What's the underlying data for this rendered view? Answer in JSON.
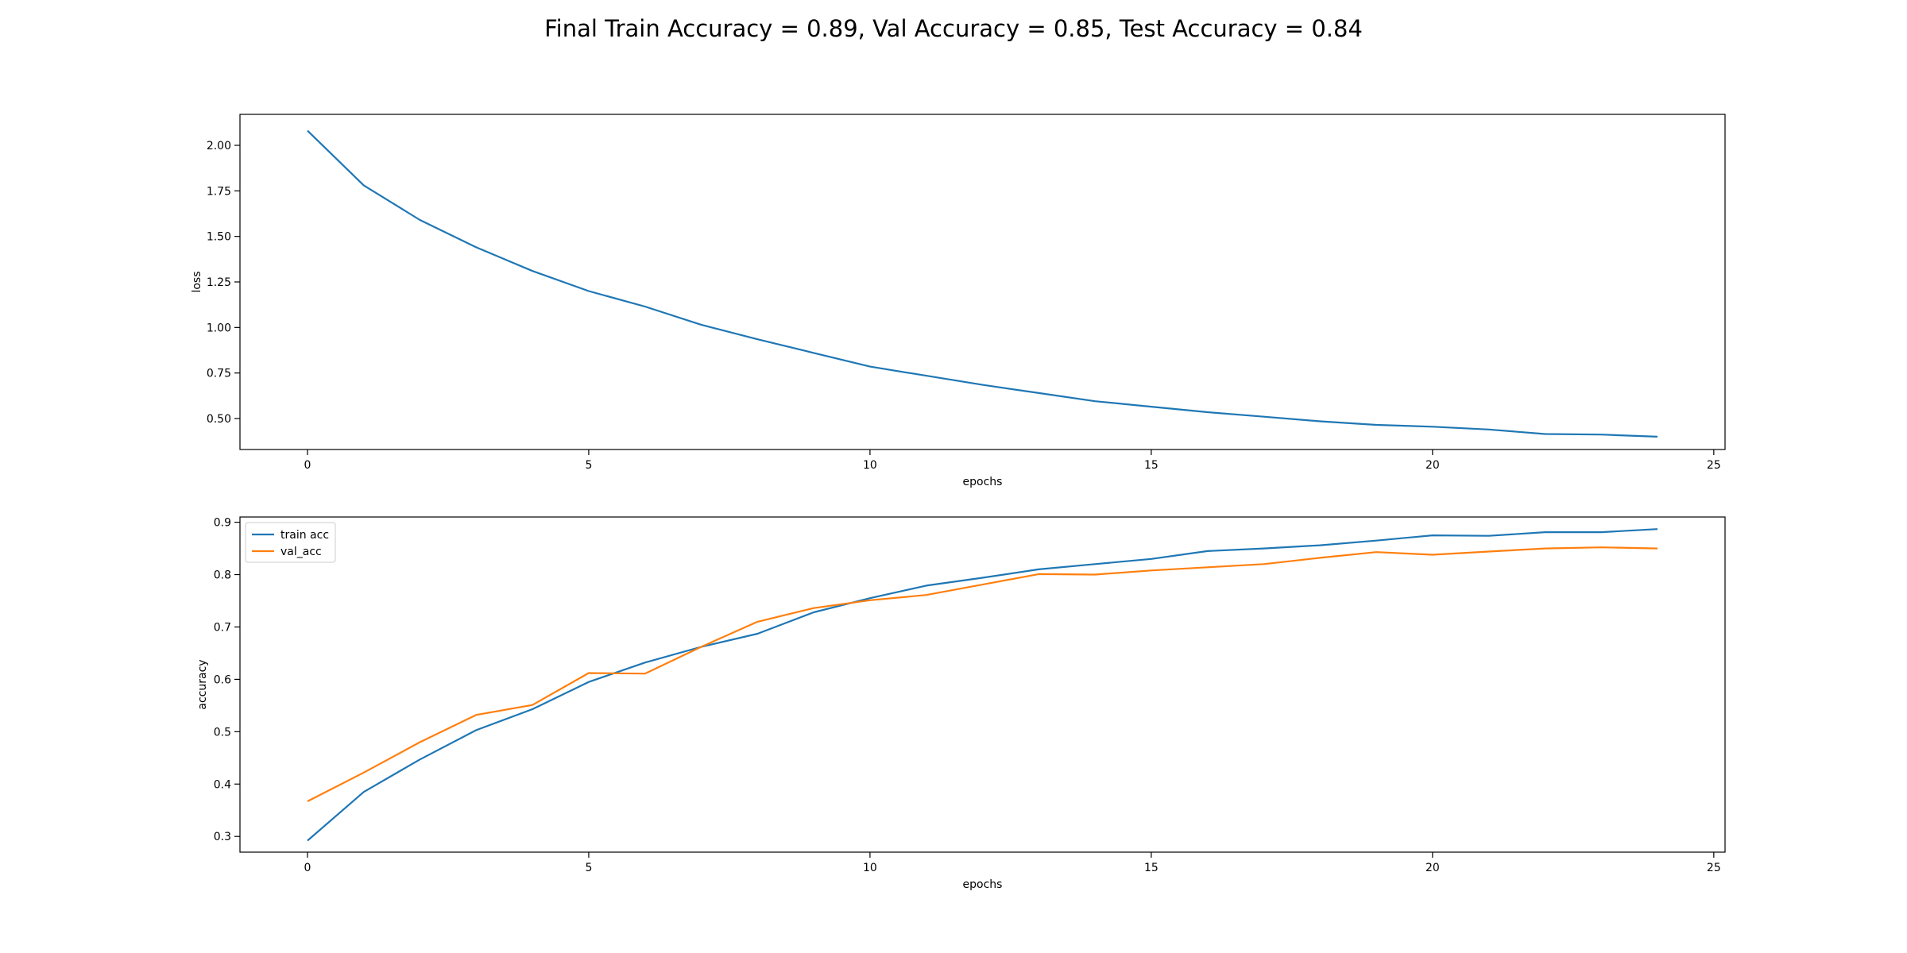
{
  "figure": {
    "suptitle": "Final Train Accuracy = 0.89, Val Accuracy = 0.85, Test Accuracy = 0.84"
  },
  "chart_data": [
    {
      "type": "line",
      "xlabel": "epochs",
      "ylabel": "loss",
      "xlim": [
        -1.2,
        25.2
      ],
      "ylim": [
        0.33,
        2.17
      ],
      "xticks": [
        0,
        5,
        10,
        15,
        20,
        25
      ],
      "yticks": [
        0.5,
        0.75,
        1.0,
        1.25,
        1.5,
        1.75,
        2.0
      ],
      "ytick_labels": [
        "0.50",
        "0.75",
        "1.00",
        "1.25",
        "1.50",
        "1.75",
        "2.00"
      ],
      "grid": false,
      "legend": null,
      "series": [
        {
          "color": "#1f77b4",
          "x": [
            0,
            1,
            2,
            3,
            4,
            5,
            6,
            7,
            8,
            9,
            10,
            11,
            12,
            13,
            14,
            15,
            16,
            17,
            18,
            19,
            20,
            21,
            22,
            23,
            24
          ],
          "values": [
            2.08,
            1.78,
            1.59,
            1.44,
            1.31,
            1.2,
            1.115,
            1.015,
            0.935,
            0.86,
            0.785,
            0.735,
            0.685,
            0.64,
            0.595,
            0.565,
            0.535,
            0.51,
            0.485,
            0.465,
            0.455,
            0.44,
            0.415,
            0.412,
            0.4
          ]
        }
      ]
    },
    {
      "type": "line",
      "xlabel": "epochs",
      "ylabel": "accuracy",
      "xlim": [
        -1.2,
        25.2
      ],
      "ylim": [
        0.27,
        0.91
      ],
      "xticks": [
        0,
        5,
        10,
        15,
        20,
        25
      ],
      "yticks": [
        0.3,
        0.4,
        0.5,
        0.6,
        0.7,
        0.8,
        0.9
      ],
      "ytick_labels": [
        "0.3",
        "0.4",
        "0.5",
        "0.6",
        "0.7",
        "0.8",
        "0.9"
      ],
      "grid": false,
      "legend": "upper-left",
      "series": [
        {
          "name": "train acc",
          "color": "#1f77b4",
          "x": [
            0,
            1,
            2,
            3,
            4,
            5,
            6,
            7,
            8,
            9,
            10,
            11,
            12,
            13,
            14,
            15,
            16,
            17,
            18,
            19,
            20,
            21,
            22,
            23,
            24
          ],
          "values": [
            0.292,
            0.385,
            0.447,
            0.503,
            0.543,
            0.595,
            0.632,
            0.662,
            0.687,
            0.728,
            0.755,
            0.779,
            0.794,
            0.81,
            0.82,
            0.83,
            0.845,
            0.85,
            0.856,
            0.865,
            0.875,
            0.874,
            0.881,
            0.881,
            0.887
          ]
        },
        {
          "name": "val_acc",
          "color": "#ff7f0e",
          "x": [
            0,
            1,
            2,
            3,
            4,
            5,
            6,
            7,
            8,
            9,
            10,
            11,
            12,
            13,
            14,
            15,
            16,
            17,
            18,
            19,
            20,
            21,
            22,
            23,
            24
          ],
          "values": [
            0.367,
            0.422,
            0.48,
            0.532,
            0.551,
            0.612,
            0.611,
            0.662,
            0.71,
            0.736,
            0.751,
            0.761,
            0.781,
            0.801,
            0.8,
            0.808,
            0.814,
            0.82,
            0.832,
            0.843,
            0.838,
            0.844,
            0.85,
            0.852,
            0.85
          ]
        }
      ]
    }
  ]
}
